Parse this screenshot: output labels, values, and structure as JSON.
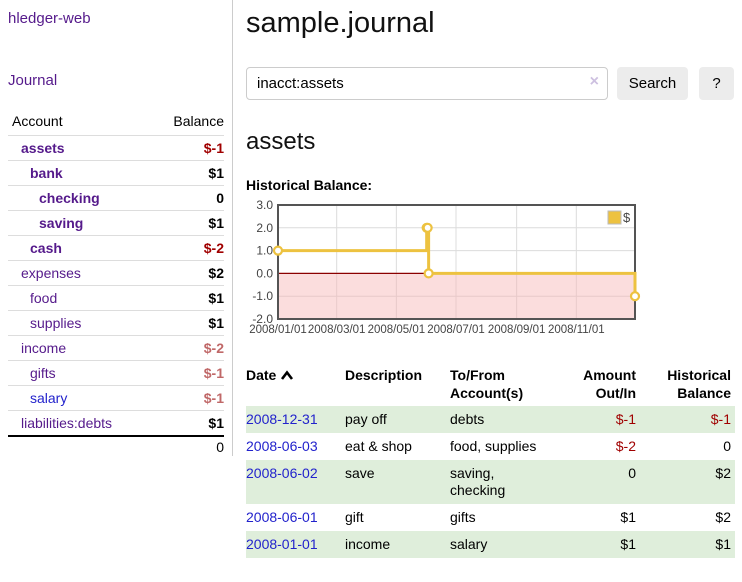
{
  "brand": "hledger-web",
  "nav": {
    "journal_label": "Journal"
  },
  "sidebar_table": {
    "headers": {
      "account": "Account",
      "balance": "Balance"
    },
    "rows": [
      {
        "account": "assets",
        "balance": "$-1",
        "indent": 1,
        "bold": true,
        "balance_style": "neg-strong",
        "link_color": "purple"
      },
      {
        "account": "bank",
        "balance": "$1",
        "indent": 2,
        "bold": true,
        "balance_style": "pos",
        "link_color": "purple"
      },
      {
        "account": "checking",
        "balance": "0",
        "indent": 3,
        "bold": true,
        "balance_style": "pos",
        "link_color": "purple"
      },
      {
        "account": "saving",
        "balance": "$1",
        "indent": 3,
        "bold": true,
        "balance_style": "pos",
        "link_color": "purple"
      },
      {
        "account": "cash",
        "balance": "$-2",
        "indent": 2,
        "bold": true,
        "balance_style": "neg-strong",
        "link_color": "purple"
      },
      {
        "account": "expenses",
        "balance": "$2",
        "indent": 1,
        "bold": false,
        "balance_style": "pos",
        "link_color": "purple"
      },
      {
        "account": "food",
        "balance": "$1",
        "indent": 2,
        "bold": false,
        "balance_style": "pos",
        "link_color": "purple"
      },
      {
        "account": "supplies",
        "balance": "$1",
        "indent": 2,
        "bold": false,
        "balance_style": "pos",
        "link_color": "purple"
      },
      {
        "account": "income",
        "balance": "$-2",
        "indent": 1,
        "bold": false,
        "balance_style": "neg-muted",
        "link_color": "purple"
      },
      {
        "account": "gifts",
        "balance": "$-1",
        "indent": 2,
        "bold": false,
        "balance_style": "neg-muted",
        "link_color": "purple"
      },
      {
        "account": "salary",
        "balance": "$-1",
        "indent": 2,
        "bold": false,
        "balance_style": "neg-muted",
        "link_color": "blue"
      },
      {
        "account": "liabilities:debts",
        "balance": "$1",
        "indent": 1,
        "bold": false,
        "balance_style": "pos",
        "link_color": "purple"
      }
    ],
    "total": "0"
  },
  "header": {
    "title": "sample.journal"
  },
  "search": {
    "value": "inacct:assets",
    "clear_icon": "×",
    "button_label": "Search",
    "help_label": "?"
  },
  "account_page": {
    "title": "assets",
    "chart_label": "Historical Balance:"
  },
  "chart_data": {
    "type": "line",
    "title": "Historical Balance:",
    "series": [
      {
        "name": "$",
        "color": "#EDC240",
        "step": true,
        "points": [
          [
            "2008-01-01",
            1
          ],
          [
            "2008-06-01",
            2
          ],
          [
            "2008-06-02",
            2
          ],
          [
            "2008-06-03",
            0
          ],
          [
            "2008-12-31",
            -1
          ]
        ]
      }
    ],
    "xlim": [
      "2008-01-01",
      "2008-12-31"
    ],
    "ylim": [
      -2,
      3
    ],
    "x_ticks": [
      "2008/01/01",
      "2008/03/01",
      "2008/05/01",
      "2008/07/01",
      "2008/09/01",
      "2008/11/01"
    ],
    "y_ticks": [
      3.0,
      2.0,
      1.0,
      0.0,
      -1.0,
      -2.0
    ],
    "grid": true,
    "legend_position": "top-right",
    "legend_label": "$",
    "negative_region_fill": "#F7B4B4",
    "zero_line_color": "#8B0000",
    "border_color": "#545454"
  },
  "register": {
    "headers": {
      "date": "Date",
      "description": "Description",
      "account": "To/From Account(s)",
      "amount": "Amount Out/In",
      "balance": "Historical Balance"
    },
    "rows": [
      {
        "date": "2008-12-31",
        "description": "pay off",
        "accounts": "debts",
        "amount": "$-1",
        "amount_neg": true,
        "balance": "$-1",
        "balance_neg": true
      },
      {
        "date": "2008-06-03",
        "description": "eat & shop",
        "accounts": "food, supplies",
        "amount": "$-2",
        "amount_neg": true,
        "balance": "0",
        "balance_neg": false
      },
      {
        "date": "2008-06-02",
        "description": "save",
        "accounts": "saving, checking",
        "amount": "0",
        "amount_neg": false,
        "balance": "$2",
        "balance_neg": false
      },
      {
        "date": "2008-06-01",
        "description": "gift",
        "accounts": "gifts",
        "amount": "$1",
        "amount_neg": false,
        "balance": "$2",
        "balance_neg": false
      },
      {
        "date": "2008-01-01",
        "description": "income",
        "accounts": "salary",
        "amount": "$1",
        "amount_neg": false,
        "balance": "$1",
        "balance_neg": false
      }
    ]
  },
  "colors": {
    "link_purple": "#551A8B",
    "link_blue": "#2222CC",
    "negative_strong": "#A00000",
    "negative_muted": "#C06868",
    "row_stripe_green": "#dfeedb",
    "chart_gold": "#EDC240"
  }
}
